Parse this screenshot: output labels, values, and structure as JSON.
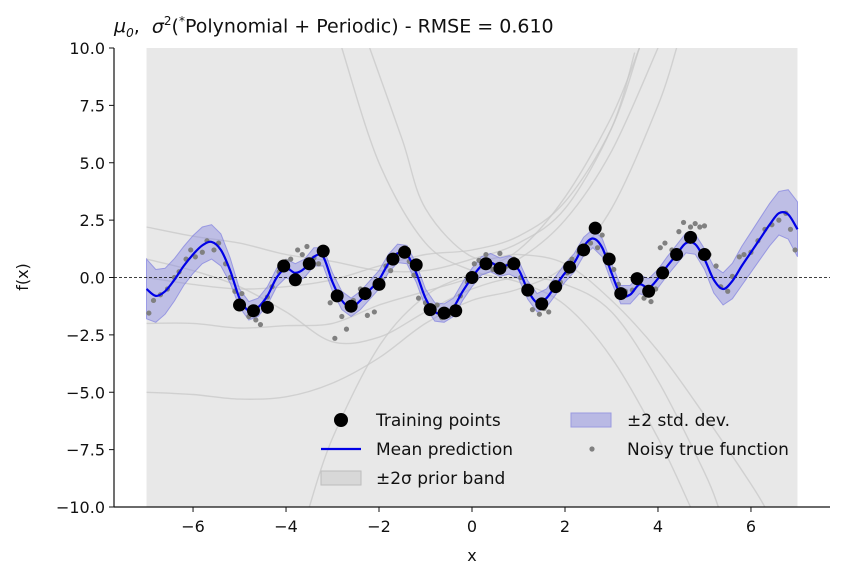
{
  "chart_data": {
    "type": "line",
    "title_parts": {
      "mu": "μ",
      "mu_sub": "0",
      "sep": ",  ",
      "sigma": "σ",
      "sigma_sup": "2",
      "open": "(",
      "star": "*",
      "rest": "Polynomial + Periodic) - RMSE = 0.610"
    },
    "xlabel": "x",
    "ylabel": "f(x)",
    "xlim": [
      -7.7,
      7.7
    ],
    "ylim": [
      -10,
      10
    ],
    "xticks": [
      -6,
      -4,
      -2,
      0,
      2,
      4,
      6
    ],
    "xtick_labels": [
      "−6",
      "−4",
      "−2",
      "0",
      "2",
      "4",
      "6"
    ],
    "yticks": [
      -10,
      -7.5,
      -5,
      -2.5,
      0,
      2.5,
      5,
      7.5,
      10
    ],
    "ytick_labels": [
      "−10.0",
      "−7.5",
      "−5.0",
      "−2.5",
      "0.0",
      "2.5",
      "5.0",
      "7.5",
      "10.0"
    ],
    "grid": false,
    "legend_placement": "lower-right",
    "legend": {
      "training": "Training points",
      "mean": "Mean prediction",
      "prior": "±2σ prior band",
      "std": "±2 std. dev.",
      "noisy": "Noisy true function"
    },
    "colors": {
      "mean": "#0000e6",
      "std_band": "#8080e0",
      "prior_band": "#d8d8d8",
      "training": "#000000",
      "noisy": "#808080",
      "prior_samples": "#c8c8c8"
    },
    "prior_band_x": [
      -7,
      7
    ],
    "training_points": [
      [
        -5.0,
        -1.2
      ],
      [
        -4.7,
        -1.45
      ],
      [
        -4.4,
        -1.3
      ],
      [
        -4.05,
        0.5
      ],
      [
        -3.8,
        -0.1
      ],
      [
        -3.5,
        0.6
      ],
      [
        -3.2,
        1.15
      ],
      [
        -2.9,
        -0.8
      ],
      [
        -2.6,
        -1.25
      ],
      [
        -2.3,
        -0.7
      ],
      [
        -2.0,
        -0.3
      ],
      [
        -1.7,
        0.8
      ],
      [
        -1.45,
        1.1
      ],
      [
        -1.2,
        0.55
      ],
      [
        -0.9,
        -1.4
      ],
      [
        -0.6,
        -1.55
      ],
      [
        -0.35,
        -1.45
      ],
      [
        0.0,
        0.0
      ],
      [
        0.3,
        0.6
      ],
      [
        0.6,
        0.4
      ],
      [
        0.9,
        0.6
      ],
      [
        1.2,
        -0.55
      ],
      [
        1.5,
        -1.15
      ],
      [
        1.8,
        -0.4
      ],
      [
        2.1,
        0.45
      ],
      [
        2.4,
        1.2
      ],
      [
        2.65,
        2.15
      ],
      [
        2.95,
        0.8
      ],
      [
        3.2,
        -0.7
      ],
      [
        3.55,
        -0.05
      ],
      [
        3.8,
        -0.6
      ],
      [
        4.1,
        0.2
      ],
      [
        4.4,
        1.0
      ],
      [
        4.7,
        1.75
      ],
      [
        5.0,
        1.0
      ]
    ],
    "mean_prediction": [
      [
        -7.0,
        -0.5
      ],
      [
        -6.8,
        -0.8
      ],
      [
        -6.6,
        -0.6
      ],
      [
        -6.4,
        -0.1
      ],
      [
        -6.2,
        0.5
      ],
      [
        -6.0,
        1.0
      ],
      [
        -5.8,
        1.4
      ],
      [
        -5.6,
        1.55
      ],
      [
        -5.4,
        1.2
      ],
      [
        -5.2,
        0.3
      ],
      [
        -5.0,
        -0.9
      ],
      [
        -4.8,
        -1.45
      ],
      [
        -4.6,
        -1.3
      ],
      [
        -4.4,
        -0.8
      ],
      [
        -4.2,
        0.0
      ],
      [
        -4.0,
        0.4
      ],
      [
        -3.8,
        0.2
      ],
      [
        -3.6,
        0.4
      ],
      [
        -3.4,
        0.9
      ],
      [
        -3.2,
        0.9
      ],
      [
        -3.0,
        -0.2
      ],
      [
        -2.8,
        -1.0
      ],
      [
        -2.6,
        -1.3
      ],
      [
        -2.4,
        -1.0
      ],
      [
        -2.2,
        -0.55
      ],
      [
        -2.0,
        -0.1
      ],
      [
        -1.8,
        0.6
      ],
      [
        -1.6,
        1.05
      ],
      [
        -1.4,
        1.0
      ],
      [
        -1.2,
        0.2
      ],
      [
        -1.0,
        -0.9
      ],
      [
        -0.8,
        -1.5
      ],
      [
        -0.6,
        -1.55
      ],
      [
        -0.4,
        -1.3
      ],
      [
        -0.2,
        -0.6
      ],
      [
        0.0,
        0.0
      ],
      [
        0.2,
        0.5
      ],
      [
        0.4,
        0.65
      ],
      [
        0.6,
        0.45
      ],
      [
        0.8,
        0.55
      ],
      [
        1.0,
        0.35
      ],
      [
        1.2,
        -0.55
      ],
      [
        1.4,
        -1.1
      ],
      [
        1.6,
        -0.9
      ],
      [
        1.8,
        -0.35
      ],
      [
        2.0,
        0.2
      ],
      [
        2.2,
        0.65
      ],
      [
        2.4,
        1.35
      ],
      [
        2.6,
        1.7
      ],
      [
        2.8,
        1.3
      ],
      [
        3.0,
        0.2
      ],
      [
        3.2,
        -0.75
      ],
      [
        3.4,
        -0.75
      ],
      [
        3.6,
        -0.3
      ],
      [
        3.8,
        -0.45
      ],
      [
        4.0,
        -0.05
      ],
      [
        4.2,
        0.5
      ],
      [
        4.4,
        1.0
      ],
      [
        4.6,
        1.5
      ],
      [
        4.8,
        1.45
      ],
      [
        5.0,
        0.8
      ],
      [
        5.2,
        -0.1
      ],
      [
        5.4,
        -0.5
      ],
      [
        5.6,
        -0.15
      ],
      [
        5.8,
        0.5
      ],
      [
        6.0,
        1.1
      ],
      [
        6.2,
        1.7
      ],
      [
        6.4,
        2.3
      ],
      [
        6.6,
        2.8
      ],
      [
        6.8,
        2.75
      ],
      [
        7.0,
        2.1
      ]
    ],
    "std_band_halfwidth": [
      [
        -7.0,
        1.3
      ],
      [
        -6.6,
        1.0
      ],
      [
        -6.2,
        0.85
      ],
      [
        -5.8,
        0.8
      ],
      [
        -5.4,
        0.7
      ],
      [
        -5.0,
        0.4
      ],
      [
        -4.0,
        0.4
      ],
      [
        -3.0,
        0.4
      ],
      [
        -2.0,
        0.4
      ],
      [
        -1.0,
        0.4
      ],
      [
        0.0,
        0.4
      ],
      [
        1.0,
        0.4
      ],
      [
        2.0,
        0.4
      ],
      [
        3.0,
        0.4
      ],
      [
        4.0,
        0.4
      ],
      [
        5.0,
        0.45
      ],
      [
        5.4,
        0.7
      ],
      [
        5.8,
        0.85
      ],
      [
        6.2,
        0.9
      ],
      [
        6.6,
        0.95
      ],
      [
        7.0,
        1.2
      ]
    ],
    "noisy_true_function": [
      [
        -6.95,
        -1.55
      ],
      [
        -6.85,
        -1.0
      ],
      [
        -6.7,
        -0.75
      ],
      [
        -6.55,
        -0.5
      ],
      [
        -6.4,
        0.0
      ],
      [
        -6.3,
        0.25
      ],
      [
        -6.15,
        0.8
      ],
      [
        -6.05,
        1.2
      ],
      [
        -5.95,
        0.9
      ],
      [
        -5.8,
        1.1
      ],
      [
        -5.7,
        1.6
      ],
      [
        -5.55,
        1.2
      ],
      [
        -5.45,
        1.5
      ],
      [
        -5.3,
        0.6
      ],
      [
        -5.2,
        0.0
      ],
      [
        -5.1,
        -0.6
      ],
      [
        -4.95,
        -0.7
      ],
      [
        -4.8,
        -1.7
      ],
      [
        -4.65,
        -1.85
      ],
      [
        -4.55,
        -2.05
      ],
      [
        -4.4,
        -0.85
      ],
      [
        -4.3,
        -0.4
      ],
      [
        -4.15,
        0.25
      ],
      [
        -4.0,
        0.7
      ],
      [
        -3.9,
        0.8
      ],
      [
        -3.75,
        1.2
      ],
      [
        -3.65,
        1.0
      ],
      [
        -3.55,
        1.35
      ],
      [
        -3.4,
        0.85
      ],
      [
        -3.3,
        0.6
      ],
      [
        -3.05,
        -1.1
      ],
      [
        -2.95,
        -2.65
      ],
      [
        -2.8,
        -1.7
      ],
      [
        -2.7,
        -2.25
      ],
      [
        -2.55,
        -1.0
      ],
      [
        -2.4,
        -0.5
      ],
      [
        -2.25,
        -1.65
      ],
      [
        -2.1,
        -1.5
      ],
      [
        -1.95,
        -0.1
      ],
      [
        -1.85,
        0.5
      ],
      [
        -1.75,
        0.3
      ],
      [
        -1.6,
        1.0
      ],
      [
        -1.45,
        1.3
      ],
      [
        -1.35,
        0.7
      ],
      [
        -1.25,
        0.1
      ],
      [
        -1.15,
        -0.9
      ],
      [
        -1.0,
        -1.1
      ],
      [
        -0.85,
        -1.3
      ],
      [
        -0.75,
        -1.2
      ],
      [
        -0.65,
        -1.75
      ],
      [
        -0.5,
        -1.65
      ],
      [
        -0.4,
        -1.3
      ],
      [
        -0.25,
        -0.8
      ],
      [
        -0.1,
        -0.2
      ],
      [
        0.05,
        0.6
      ],
      [
        0.15,
        0.75
      ],
      [
        0.3,
        1.0
      ],
      [
        0.45,
        0.35
      ],
      [
        0.6,
        1.05
      ],
      [
        0.75,
        0.5
      ],
      [
        0.9,
        0.8
      ],
      [
        1.05,
        0.0
      ],
      [
        1.15,
        -0.5
      ],
      [
        1.3,
        -1.4
      ],
      [
        1.45,
        -1.6
      ],
      [
        1.55,
        -1.35
      ],
      [
        1.65,
        -1.5
      ],
      [
        1.8,
        -0.55
      ],
      [
        1.9,
        -0.2
      ],
      [
        2.05,
        0.2
      ],
      [
        2.15,
        0.8
      ],
      [
        2.3,
        1.1
      ],
      [
        2.45,
        1.35
      ],
      [
        2.55,
        1.5
      ],
      [
        2.7,
        1.3
      ],
      [
        2.8,
        1.85
      ],
      [
        2.9,
        1.0
      ],
      [
        3.05,
        0.35
      ],
      [
        3.15,
        -0.3
      ],
      [
        3.3,
        -0.6
      ],
      [
        3.45,
        -0.55
      ],
      [
        3.6,
        -0.2
      ],
      [
        3.7,
        -0.9
      ],
      [
        3.85,
        -1.05
      ],
      [
        3.95,
        -0.5
      ],
      [
        4.05,
        1.3
      ],
      [
        4.15,
        1.5
      ],
      [
        4.3,
        1.2
      ],
      [
        4.45,
        2.0
      ],
      [
        4.55,
        2.4
      ],
      [
        4.7,
        2.2
      ],
      [
        4.8,
        2.35
      ],
      [
        4.9,
        2.2
      ],
      [
        5.0,
        2.25
      ],
      [
        5.1,
        1.0
      ],
      [
        5.25,
        0.5
      ],
      [
        5.35,
        -0.4
      ],
      [
        5.5,
        -0.6
      ],
      [
        5.6,
        0.05
      ],
      [
        5.75,
        0.9
      ],
      [
        5.85,
        1.0
      ],
      [
        6.0,
        1.1
      ],
      [
        6.15,
        1.6
      ],
      [
        6.3,
        2.1
      ],
      [
        6.45,
        2.3
      ],
      [
        6.6,
        2.5
      ],
      [
        6.75,
        2.8
      ],
      [
        6.85,
        2.1
      ],
      [
        6.95,
        1.2
      ]
    ],
    "prior_samples": [
      [
        [
          -7.0,
          0.0
        ],
        [
          -6.0,
          -0.3
        ],
        [
          -5.0,
          -0.5
        ],
        [
          -4.0,
          -0.4
        ],
        [
          -3.0,
          -0.1
        ],
        [
          -2.0,
          0.5
        ],
        [
          -1.0,
          1.0
        ],
        [
          0.0,
          1.2
        ],
        [
          1.0,
          1.8
        ],
        [
          2.0,
          3.3
        ],
        [
          3.0,
          6.5
        ],
        [
          3.6,
          10.0
        ]
      ],
      [
        [
          -7.0,
          -2.0
        ],
        [
          -6.0,
          -2.0
        ],
        [
          -5.0,
          -2.2
        ],
        [
          -4.0,
          -2.1
        ],
        [
          -3.0,
          -2.0
        ],
        [
          -2.0,
          -1.2
        ],
        [
          -1.0,
          -0.6
        ],
        [
          0.0,
          0.0
        ],
        [
          1.0,
          0.8
        ],
        [
          2.0,
          2.5
        ],
        [
          3.0,
          5.5
        ],
        [
          4.0,
          10.0
        ]
      ],
      [
        [
          -7.0,
          2.2
        ],
        [
          -6.0,
          1.8
        ],
        [
          -5.0,
          1.5
        ],
        [
          -4.0,
          1.0
        ],
        [
          -3.0,
          0.7
        ],
        [
          -2.0,
          0.3
        ],
        [
          -1.0,
          0.3
        ],
        [
          0.0,
          0.8
        ],
        [
          1.0,
          1.5
        ],
        [
          2.0,
          3.0
        ],
        [
          3.0,
          6.5
        ],
        [
          3.5,
          9.8
        ]
      ],
      [
        [
          -7.0,
          -5.0
        ],
        [
          -6.0,
          -5.1
        ],
        [
          -5.0,
          -5.3
        ],
        [
          -4.0,
          -5.2
        ],
        [
          -3.0,
          -4.6
        ],
        [
          -2.0,
          -3.5
        ],
        [
          -1.0,
          -2.0
        ],
        [
          0.0,
          -1.0
        ],
        [
          1.0,
          -0.5
        ],
        [
          2.0,
          0.5
        ],
        [
          3.0,
          3.0
        ],
        [
          4.0,
          7.5
        ],
        [
          4.4,
          10.0
        ]
      ],
      [
        [
          -7.0,
          0.8
        ],
        [
          -6.0,
          0.3
        ],
        [
          -5.0,
          -0.4
        ],
        [
          -4.0,
          -1.5
        ],
        [
          -3.0,
          -2.8
        ],
        [
          -2.0,
          -2.6
        ],
        [
          -1.0,
          -1.5
        ],
        [
          0.0,
          -0.5
        ],
        [
          1.0,
          0.0
        ],
        [
          2.0,
          -0.3
        ],
        [
          3.0,
          -1.5
        ],
        [
          4.0,
          -4.5
        ],
        [
          5.0,
          -8.5
        ],
        [
          5.3,
          -10.0
        ]
      ],
      [
        [
          -2.8,
          10.0
        ],
        [
          -2.0,
          5.0
        ],
        [
          -1.0,
          1.5
        ],
        [
          0.0,
          0.3
        ],
        [
          1.0,
          -0.2
        ],
        [
          2.0,
          -1.2
        ],
        [
          3.0,
          -3.5
        ],
        [
          4.0,
          -7.0
        ],
        [
          4.7,
          -10.0
        ]
      ],
      [
        [
          -3.5,
          -10.0
        ],
        [
          -3.0,
          -7.0
        ],
        [
          -2.0,
          -3.0
        ],
        [
          -1.0,
          -0.8
        ],
        [
          0.0,
          0.2
        ],
        [
          1.0,
          1.2
        ],
        [
          2.0,
          3.5
        ],
        [
          3.0,
          7.0
        ],
        [
          3.6,
          10.0
        ]
      ],
      [
        [
          -2.2,
          10.0
        ],
        [
          -1.5,
          6.0
        ],
        [
          -1.0,
          3.0
        ],
        [
          0.0,
          0.9
        ],
        [
          1.0,
          1.0
        ],
        [
          2.0,
          0.6
        ],
        [
          3.0,
          -1.0
        ],
        [
          4.0,
          -3.2
        ],
        [
          5.0,
          -6.0
        ],
        [
          6.0,
          -9.0
        ],
        [
          6.3,
          -10.0
        ]
      ]
    ]
  }
}
